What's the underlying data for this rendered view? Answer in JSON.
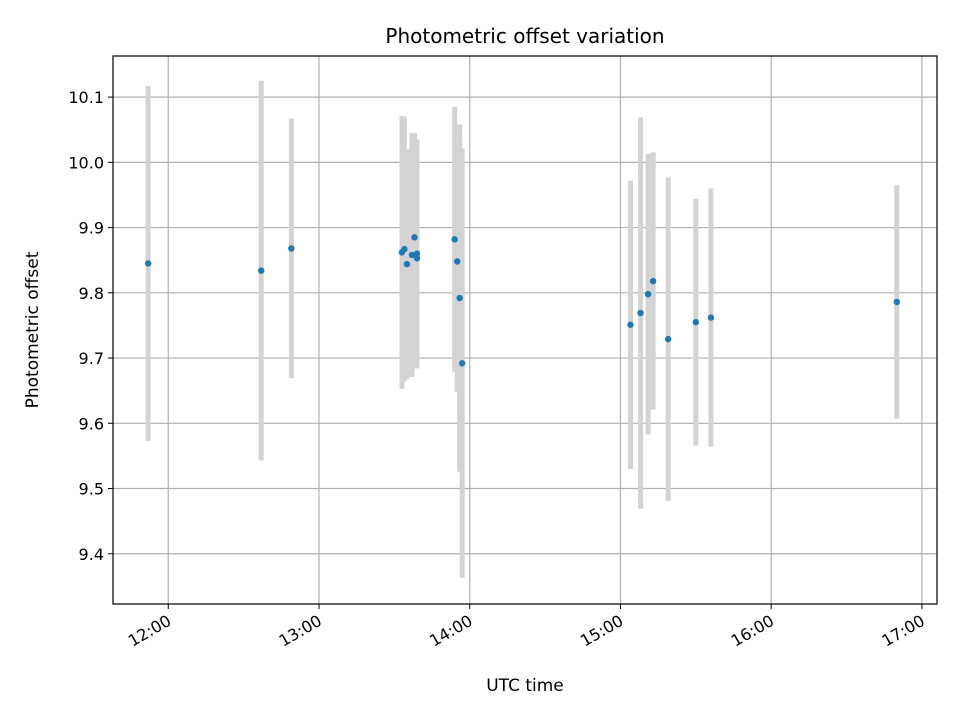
{
  "chart_data": {
    "type": "scatter",
    "title": "Photometric offset variation",
    "xlabel": "UTC time",
    "ylabel": "Photometric offset",
    "xlim": [
      "11:38",
      "17:06"
    ],
    "ylim": [
      9.323,
      10.163
    ],
    "grid": true,
    "x_ticks": [
      "12:00",
      "13:00",
      "14:00",
      "15:00",
      "16:00",
      "17:00"
    ],
    "y_ticks": [
      9.4,
      9.5,
      9.6,
      9.7,
      9.8,
      9.9,
      10.0,
      10.1
    ],
    "point_color": "#1f77b4",
    "errorbar_color": "#d3d3d3",
    "points": [
      {
        "x": "11:52",
        "y": 9.845,
        "err": 0.272
      },
      {
        "x": "12:37",
        "y": 9.834,
        "err": 0.291
      },
      {
        "x": "12:49",
        "y": 9.868,
        "err": 0.199
      },
      {
        "x": "13:33",
        "y": 9.862,
        "err": 0.209
      },
      {
        "x": "13:34",
        "y": 9.867,
        "err": 0.203
      },
      {
        "x": "13:35",
        "y": 9.844,
        "err": 0.176
      },
      {
        "x": "13:37",
        "y": 9.858,
        "err": 0.187
      },
      {
        "x": "13:38",
        "y": 9.885,
        "err": 0.16
      },
      {
        "x": "13:39",
        "y": 9.853,
        "err": 0.169
      },
      {
        "x": "13:39",
        "y": 9.86,
        "err": 0.175
      },
      {
        "x": "13:54",
        "y": 9.882,
        "err": 0.203
      },
      {
        "x": "13:55",
        "y": 9.848,
        "err": 0.2
      },
      {
        "x": "13:56",
        "y": 9.792,
        "err": 0.266
      },
      {
        "x": "13:57",
        "y": 9.692,
        "err": 0.329
      },
      {
        "x": "15:04",
        "y": 9.751,
        "err": 0.221
      },
      {
        "x": "15:08",
        "y": 9.769,
        "err": 0.3
      },
      {
        "x": "15:11",
        "y": 9.798,
        "err": 0.215
      },
      {
        "x": "15:13",
        "y": 9.818,
        "err": 0.197
      },
      {
        "x": "15:19",
        "y": 9.729,
        "err": 0.248
      },
      {
        "x": "15:30",
        "y": 9.755,
        "err": 0.189
      },
      {
        "x": "15:36",
        "y": 9.762,
        "err": 0.198
      },
      {
        "x": "16:50",
        "y": 9.786,
        "err": 0.179
      }
    ]
  }
}
